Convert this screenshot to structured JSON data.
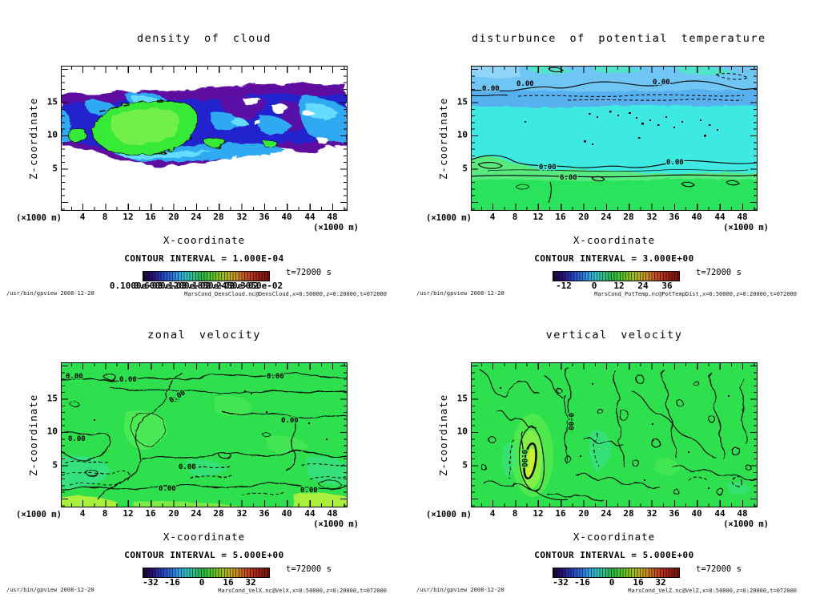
{
  "meta": {
    "app": "gpview (Dennou Club Library quick viewer)",
    "command_line": "/usr/bin/gpview  2008-12-20",
    "time_label": "t=72000 s"
  },
  "axes": {
    "x_label": "X-coordinate",
    "z_label": "Z-coordinate",
    "x_unit": "(×1000 m)",
    "z_unit": "(×1000 m)",
    "x_ticks": [
      "4",
      "8",
      "12",
      "16",
      "20",
      "24",
      "28",
      "32",
      "36",
      "40",
      "44",
      "48"
    ],
    "z_ticks": [
      "15",
      "10",
      "5"
    ]
  },
  "panels": [
    {
      "title": "density of cloud",
      "contour_interval": "CONTOUR INTERVAL = 1.000E-04",
      "time": "t=72000 s",
      "source": "MarsCond_DensCloud.nc@DensCloud,x=0:50000,z=0:20000,t=072000",
      "colorbar_labels": [
        "0.1000e-03",
        "0.6000e-03",
        "0.1200e-02",
        "0.1850e-02",
        "0.2450e-02",
        "0.3050e-02"
      ],
      "contour_labels": []
    },
    {
      "title": "disturbunce of potential temperature",
      "contour_interval": "CONTOUR INTERVAL = 3.000E+00",
      "time": "t=72000 s",
      "source": "MarsCond_PotTemp.nc@PotTempDist,x=0:50000,z=0:20000,t=072000",
      "colorbar_labels": [
        "-12",
        "0",
        "12",
        "24",
        "36"
      ],
      "contour_labels": [
        "0.00",
        "0.00",
        "0.00",
        "0.00",
        "0.00",
        "6.00"
      ]
    },
    {
      "title": "zonal velocity",
      "contour_interval": "CONTOUR INTERVAL = 5.000E+00",
      "time": "t=72000 s",
      "source": "MarsCond_VelX.nc@VelX,x=0:50000,z=0:20000,t=072000",
      "colorbar_labels": [
        "-32",
        "-16",
        "0",
        "16",
        "32"
      ],
      "contour_labels": [
        "0.00",
        "0.00",
        "0.00",
        "0.00",
        "0.00",
        "0.00",
        "0.00",
        "0.00",
        "0.00"
      ]
    },
    {
      "title": "vertical velocity",
      "contour_interval": "CONTOUR INTERVAL = 5.000E+00",
      "time": "t=72000 s",
      "source": "MarsCond_VelZ.nc@VelZ,x=0:50000,z=0:20000,t=072000",
      "colorbar_labels": [
        "-32",
        "-16",
        "0",
        "16",
        "32"
      ],
      "contour_labels": [
        "0.00",
        "0.00"
      ]
    }
  ],
  "colors": {
    "background": "#ffffff",
    "text": "#000000",
    "cloud_purple": "#5f0ca1",
    "cloud_deep_blue": "#2121cf",
    "cloud_cyan": "#2fa9f2",
    "cloud_green": "#37ea38",
    "temp_cyan": "#3ee9e1",
    "temp_light_blue": "#6fc5f3",
    "temp_green": "#2be35c",
    "velocity_green": "#2ee04e",
    "updraft_core_yellow": "#cdef2f",
    "colorbar_low": "#15052e",
    "colorbar_high": "#6f120f"
  },
  "chart_data": [
    {
      "type": "heatmap",
      "variant": "filled_contour_xz_section",
      "title": "density of cloud",
      "xlabel": "X-coordinate",
      "ylabel": "Z-coordinate",
      "x_unit": "×1000 m",
      "y_unit": "×1000 m",
      "xlim": [
        0,
        50
      ],
      "ylim": [
        0,
        20
      ],
      "x_ticks": [
        4,
        8,
        12,
        16,
        20,
        24,
        28,
        32,
        36,
        40,
        44,
        48
      ],
      "y_ticks": [
        5,
        10,
        15
      ],
      "contour_interval": 0.0001,
      "colorbar_labels": [
        "0.1000e-03",
        "0.6000e-03",
        "0.1200e-02",
        "0.1850e-02",
        "0.2450e-02",
        "0.3050e-02"
      ],
      "time_s": 72000,
      "features": "Cloud layer confined to z≈5.5–17 km across all x; white (zero) above and below. Purple/dark-blue low density at layer fringes, cyan swirls inside, high-density green core outlined in black spanning x≈6–23 km, z≈7–13 km; smaller green islands near x≈26–30 km."
    },
    {
      "type": "heatmap",
      "variant": "filled_contour_xz_section",
      "title": "disturbunce of potential temperature",
      "xlabel": "X-coordinate",
      "ylabel": "Z-coordinate",
      "x_unit": "×1000 m",
      "y_unit": "×1000 m",
      "xlim": [
        0,
        50
      ],
      "ylim": [
        0,
        20
      ],
      "x_ticks": [
        4,
        8,
        12,
        16,
        20,
        24,
        28,
        32,
        36,
        40,
        44,
        48
      ],
      "y_ticks": [
        5,
        10,
        15
      ],
      "contour_interval": 3.0,
      "colorbar_labels": [
        -12,
        0,
        12,
        24,
        36
      ],
      "labeled_contours": [
        0.0,
        0.0,
        0.0,
        0.0,
        0.0,
        6.0
      ],
      "time_s": 72000,
      "features": "Horizontally stratified: light-blue negative band z≈15–17 km with dashed (negative) contours and 0.00 contour along its base; near-zero cyan interior z≈5–15 km with scattered small closed contours; green near-surface layer below z≈4.5 km exceeding 6.00."
    },
    {
      "type": "heatmap",
      "variant": "filled_contour_xz_section",
      "title": "zonal velocity",
      "xlabel": "X-coordinate",
      "ylabel": "Z-coordinate",
      "x_unit": "×1000 m",
      "y_unit": "×1000 m",
      "xlim": [
        0,
        50
      ],
      "ylim": [
        0,
        20
      ],
      "x_ticks": [
        4,
        8,
        12,
        16,
        20,
        24,
        28,
        32,
        36,
        40,
        44,
        48
      ],
      "y_ticks": [
        5,
        10,
        15
      ],
      "contour_interval": 5.0,
      "colorbar_labels": [
        -32,
        -16,
        0,
        16,
        32
      ],
      "labeled_contours": [
        0.0
      ],
      "time_s": 72000,
      "features": "Nearly uniform green (≈0 m/s) with long meandering 0.00 contours; dashed negative pockets in lower-left, lower-centre and lower-right; weak positive (yellow-green) strips along the bottom corners."
    },
    {
      "type": "heatmap",
      "variant": "filled_contour_xz_section",
      "title": "vertical velocity",
      "xlabel": "X-coordinate",
      "ylabel": "Z-coordinate",
      "x_unit": "×1000 m",
      "y_unit": "×1000 m",
      "xlim": [
        0,
        50
      ],
      "ylim": [
        0,
        20
      ],
      "x_ticks": [
        4,
        8,
        12,
        16,
        20,
        24,
        28,
        32,
        36,
        40,
        44,
        48
      ],
      "y_ticks": [
        5,
        10,
        15
      ],
      "contour_interval": 5.0,
      "colorbar_labels": [
        -32,
        -16,
        0,
        16,
        32
      ],
      "labeled_contours": [
        0.0
      ],
      "time_s": 72000,
      "features": "Noisy small-scale 0.00 contours over the whole domain on a near-zero green field; strong narrow updraft with yellow-green core and bold closed contour at x≈9–11 km, z≈3–8 km; dashed downdraft cells adjacent to it."
    }
  ]
}
